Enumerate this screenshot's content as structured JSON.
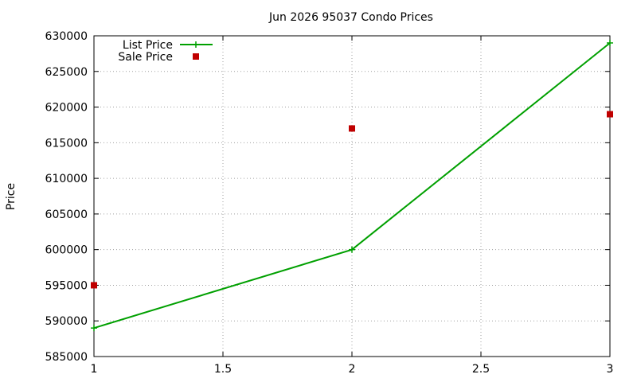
{
  "chart_data": {
    "type": "line",
    "title": "Jun 2026 95037 Condo Prices",
    "xlabel": "",
    "ylabel": "Price",
    "xlim": [
      1,
      3
    ],
    "ylim": [
      585000,
      630000
    ],
    "x_ticks": [
      "1",
      "1.5",
      "2",
      "2.5",
      "3"
    ],
    "y_ticks": [
      "585000",
      "590000",
      "595000",
      "600000",
      "605000",
      "610000",
      "615000",
      "620000",
      "625000",
      "630000"
    ],
    "grid": true,
    "legend_position": "top-left",
    "x": [
      1,
      2,
      3
    ],
    "series": [
      {
        "name": "List Price",
        "style": "linespoints",
        "marker": "plus",
        "color": "#00a000",
        "values": [
          589000,
          600000,
          629000
        ]
      },
      {
        "name": "Sale Price",
        "style": "points",
        "marker": "square",
        "color": "#c00000",
        "values": [
          595000,
          617000,
          619000
        ]
      }
    ]
  }
}
